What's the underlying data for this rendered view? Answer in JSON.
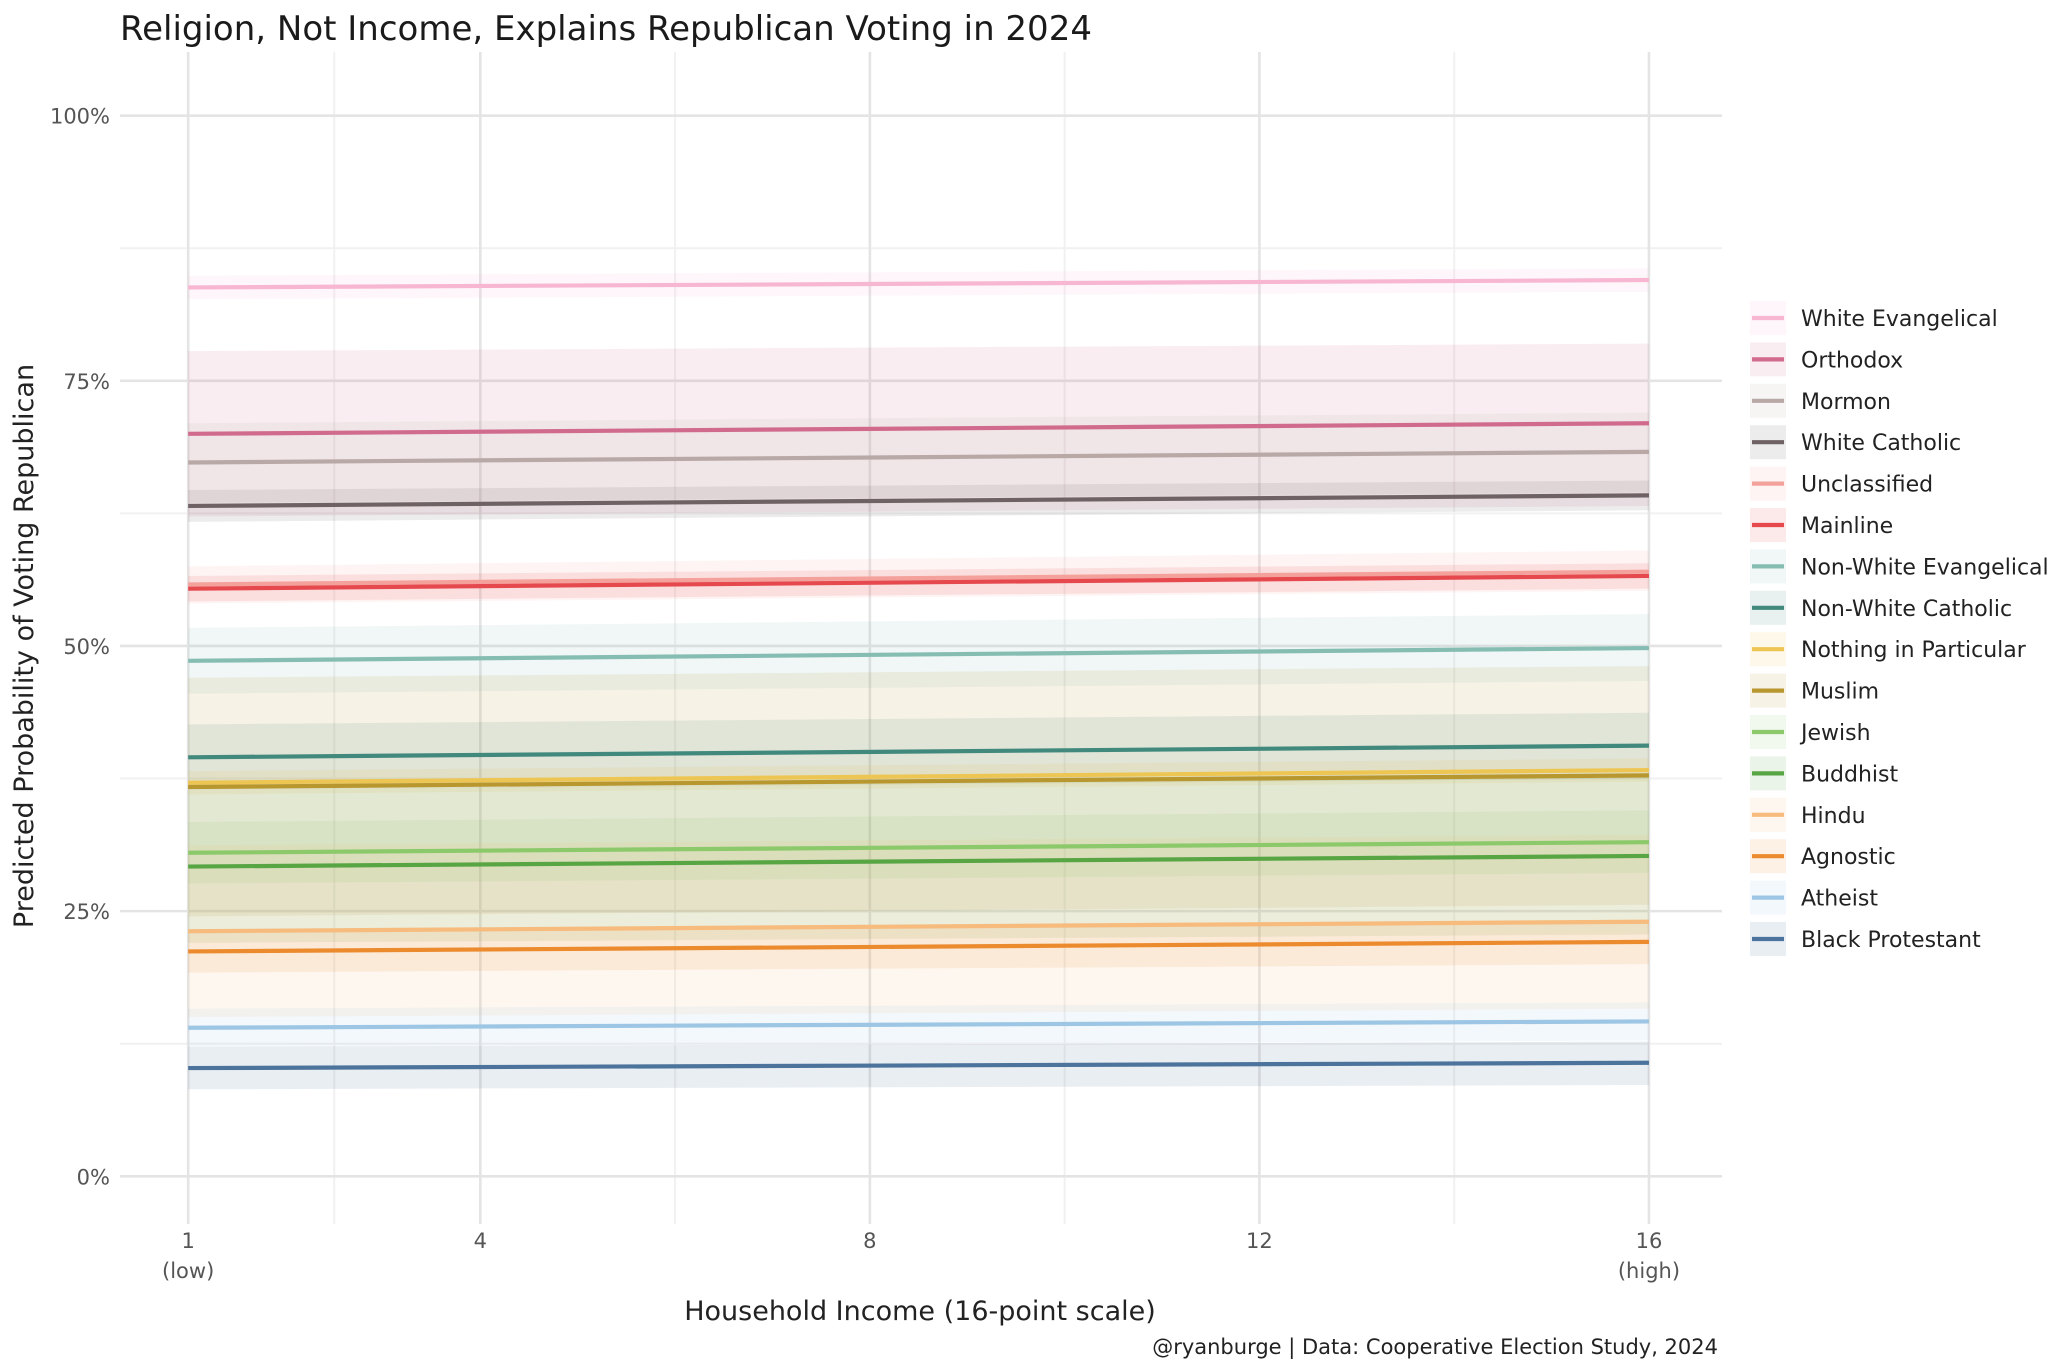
{
  "chart_data": {
    "type": "line",
    "title": "Religion, Not Income, Explains Republican Voting in 2024",
    "xlabel": "Household Income (16-point scale)",
    "ylabel": "Predicted Probability of Voting Republican",
    "caption": "@ryanburge | Data: Cooperative Election Study, 2024",
    "xlim": [
      0.3,
      16.75
    ],
    "ylim": [
      -0.045,
      1.06
    ],
    "x_ticks": [
      {
        "value": 1,
        "label": "1",
        "sublabel": "(low)"
      },
      {
        "value": 4,
        "label": "4",
        "sublabel": ""
      },
      {
        "value": 8,
        "label": "8",
        "sublabel": ""
      },
      {
        "value": 12,
        "label": "12",
        "sublabel": ""
      },
      {
        "value": 16,
        "label": "16",
        "sublabel": "(high)"
      }
    ],
    "y_ticks": [
      {
        "value": 0,
        "label": "0%"
      },
      {
        "value": 0.25,
        "label": "25%"
      },
      {
        "value": 0.5,
        "label": "50%"
      },
      {
        "value": 0.75,
        "label": "75%"
      },
      {
        "value": 1.0,
        "label": "100%"
      }
    ],
    "grid": true,
    "legend_position": "right",
    "x": [
      1,
      16
    ],
    "series": [
      {
        "name": "White Evangelical",
        "color": "#F7B6D2",
        "values": [
          0.838,
          0.845
        ],
        "ci_lower": [
          0.827,
          0.834
        ],
        "ci_upper": [
          0.849,
          0.856
        ]
      },
      {
        "name": "Orthodox",
        "color": "#D16B8E",
        "values": [
          0.7,
          0.71
        ],
        "ci_lower": [
          0.622,
          0.632
        ],
        "ci_upper": [
          0.778,
          0.785
        ]
      },
      {
        "name": "Mormon",
        "color": "#B8A9A7",
        "values": [
          0.673,
          0.683
        ],
        "ci_lower": [
          0.635,
          0.645
        ],
        "ci_upper": [
          0.71,
          0.72
        ]
      },
      {
        "name": "White Catholic",
        "color": "#6E6264",
        "values": [
          0.632,
          0.642
        ],
        "ci_lower": [
          0.617,
          0.628
        ],
        "ci_upper": [
          0.647,
          0.656
        ]
      },
      {
        "name": "Unclassified",
        "color": "#F4A19B",
        "values": [
          0.558,
          0.57
        ],
        "ci_lower": [
          0.54,
          0.552
        ],
        "ci_upper": [
          0.575,
          0.59
        ]
      },
      {
        "name": "Mainline",
        "color": "#E5484D",
        "values": [
          0.554,
          0.566
        ],
        "ci_lower": [
          0.542,
          0.554
        ],
        "ci_upper": [
          0.566,
          0.578
        ]
      },
      {
        "name": "Non-White Evangelical",
        "color": "#86BDB3",
        "values": [
          0.486,
          0.498
        ],
        "ci_lower": [
          0.455,
          0.467
        ],
        "ci_upper": [
          0.517,
          0.53
        ]
      },
      {
        "name": "Non-White Catholic",
        "color": "#41897C",
        "values": [
          0.395,
          0.406
        ],
        "ci_lower": [
          0.364,
          0.375
        ],
        "ci_upper": [
          0.426,
          0.437
        ]
      },
      {
        "name": "Nothing in Particular",
        "color": "#EDC553",
        "values": [
          0.371,
          0.383
        ],
        "ci_lower": [
          0.36,
          0.372
        ],
        "ci_upper": [
          0.382,
          0.394
        ]
      },
      {
        "name": "Muslim",
        "color": "#B8972E",
        "values": [
          0.367,
          0.378
        ],
        "ci_lower": [
          0.245,
          0.256
        ],
        "ci_upper": [
          0.47,
          0.481
        ]
      },
      {
        "name": "Jewish",
        "color": "#8BC96B",
        "values": [
          0.305,
          0.315
        ],
        "ci_lower": [
          0.276,
          0.286
        ],
        "ci_upper": [
          0.334,
          0.345
        ]
      },
      {
        "name": "Buddhist",
        "color": "#57A543",
        "values": [
          0.292,
          0.302
        ],
        "ci_lower": [
          0.22,
          0.228
        ],
        "ci_upper": [
          0.364,
          0.376
        ]
      },
      {
        "name": "Hindu",
        "color": "#F6BB7D",
        "values": [
          0.231,
          0.24
        ],
        "ci_lower": [
          0.15,
          0.158
        ],
        "ci_upper": [
          0.312,
          0.322
        ]
      },
      {
        "name": "Agnostic",
        "color": "#EC8A2E",
        "values": [
          0.212,
          0.221
        ],
        "ci_lower": [
          0.192,
          0.2
        ],
        "ci_upper": [
          0.232,
          0.242
        ]
      },
      {
        "name": "Atheist",
        "color": "#9CC6E4",
        "values": [
          0.14,
          0.146
        ],
        "ci_lower": [
          0.122,
          0.128
        ],
        "ci_upper": [
          0.158,
          0.164
        ]
      },
      {
        "name": "Black Protestant",
        "color": "#4C739B",
        "values": [
          0.102,
          0.107
        ],
        "ci_lower": [
          0.082,
          0.086
        ],
        "ci_upper": [
          0.122,
          0.127
        ]
      }
    ]
  }
}
